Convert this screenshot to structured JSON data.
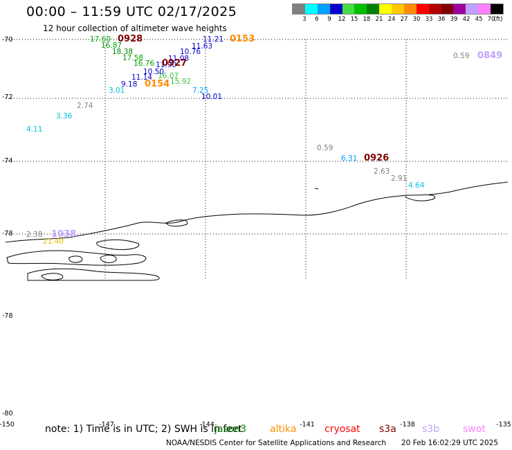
{
  "header": {
    "title": "00:00 – 11:59 UTC 02/17/2025",
    "subtitle": "12 hour collection of altimeter wave heights"
  },
  "legend": {
    "unit": "(ft)",
    "entries": [
      {
        "label": "3",
        "color": "#808080"
      },
      {
        "label": "6",
        "color": "#00ffff"
      },
      {
        "label": "9",
        "color": "#00a0ff"
      },
      {
        "label": "12",
        "color": "#0000c8"
      },
      {
        "label": "15",
        "color": "#40e040"
      },
      {
        "label": "18",
        "color": "#00c000"
      },
      {
        "label": "21",
        "color": "#008000"
      },
      {
        "label": "24",
        "color": "#ffff00"
      },
      {
        "label": "27",
        "color": "#ffc800"
      },
      {
        "label": "30",
        "color": "#ff8c00"
      },
      {
        "label": "33",
        "color": "#ff0000"
      },
      {
        "label": "36",
        "color": "#b40000"
      },
      {
        "label": "39",
        "color": "#800000"
      },
      {
        "label": "42",
        "color": "#a000a0"
      },
      {
        "label": "45",
        "color": "#c0a0ff"
      },
      {
        "label": "70",
        "color": "#ff80ff"
      },
      {
        "label": "",
        "color": "#000000"
      }
    ]
  },
  "axes": {
    "lat_labels": [
      "-70",
      "-72",
      "-74",
      "-78",
      "-78",
      "-80"
    ],
    "lon_labels": [
      "-150",
      "-147",
      "-144",
      "-141",
      "-138",
      "-135"
    ]
  },
  "observations": [
    {
      "text": "17.60",
      "color": "#00a000"
    },
    {
      "text": "16.87",
      "color": "#00a000"
    },
    {
      "text": "18.38",
      "color": "#008000"
    },
    {
      "text": "17.58",
      "color": "#00a000"
    },
    {
      "text": "16.76",
      "color": "#00a000"
    },
    {
      "text": "15.92",
      "color": "#40c040"
    },
    {
      "text": "16.07",
      "color": "#40c040"
    },
    {
      "text": "11.90",
      "color": "#0000c8"
    },
    {
      "text": "10.50",
      "color": "#0000c8"
    },
    {
      "text": "11.08",
      "color": "#0000c8"
    },
    {
      "text": "10.76",
      "color": "#0000c8"
    },
    {
      "text": "11.63",
      "color": "#0000c8"
    },
    {
      "text": "11.21",
      "color": "#0000c8"
    },
    {
      "text": "11.14",
      "color": "#0000c8"
    },
    {
      "text": "9.18",
      "color": "#0000c8"
    },
    {
      "text": "3.01",
      "color": "#00c0e0"
    },
    {
      "text": "7.25",
      "color": "#00a0ff"
    },
    {
      "text": "10.01",
      "color": "#0000c8"
    },
    {
      "text": "2.74",
      "color": "#808080"
    },
    {
      "text": "3.36",
      "color": "#00c0e0"
    },
    {
      "text": "4.11",
      "color": "#00c0e0"
    },
    {
      "text": "0.59",
      "color": "#808080"
    },
    {
      "text": "0.59",
      "color": "#808080"
    },
    {
      "text": "6.31",
      "color": "#00a0ff"
    },
    {
      "text": "2.63",
      "color": "#808080"
    },
    {
      "text": "2.91",
      "color": "#808080"
    },
    {
      "text": "4.64",
      "color": "#00c0e0"
    },
    {
      "text": "2.38",
      "color": "#808080"
    },
    {
      "text": "21.40",
      "color": "#e0c000"
    }
  ],
  "passes": [
    {
      "text": "0928",
      "color": "#800000"
    },
    {
      "text": "0927",
      "color": "#800000"
    },
    {
      "text": "0154",
      "color": "#ff8c00"
    },
    {
      "text": "0153",
      "color": "#ff8c00"
    },
    {
      "text": "0849",
      "color": "#c0a0ff"
    },
    {
      "text": "0926",
      "color": "#800000"
    },
    {
      "text": "1038",
      "color": "#c0a0ff"
    }
  ],
  "footer": {
    "note": "note: 1) Time is in UTC; 2) SWH is in feet",
    "satellites": [
      {
        "label": "jason3",
        "color": "#008000"
      },
      {
        "label": "altika",
        "color": "#ff8c00"
      },
      {
        "label": "cryosat",
        "color": "#ff0000"
      },
      {
        "label": "s3a",
        "color": "#800000"
      },
      {
        "label": "s3b",
        "color": "#c0a0ff"
      },
      {
        "label": "swot",
        "color": "#ff80ff"
      }
    ],
    "credit": "NOAA/NESDIS Center for Satellite Applications and Research",
    "date": "20 Feb 16:02:29 UTC 2025"
  }
}
